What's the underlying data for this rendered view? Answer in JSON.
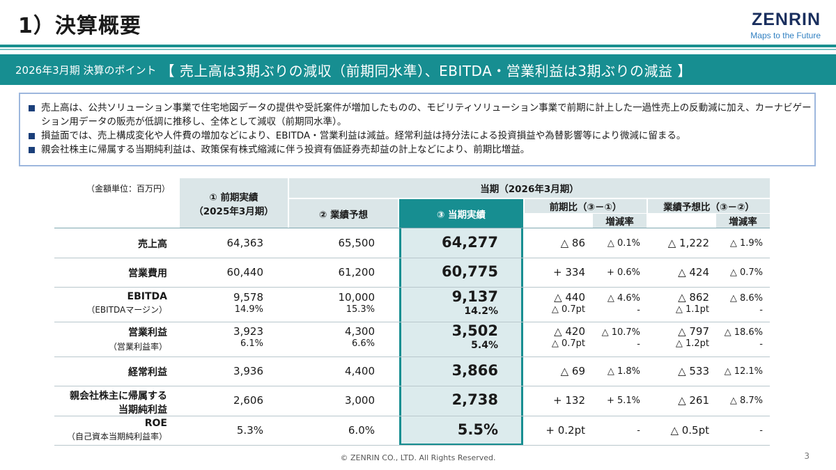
{
  "header": {
    "title": "1）決算概要",
    "logo_brand": "ZENRIN",
    "logo_tagline": "Maps to the Future"
  },
  "banner": {
    "small": "2026年3月期 決算のポイント",
    "big": "【 売上高は3期ぶりの減収（前期同水準）、EBITDA・営業利益は3期ぶりの減益 】"
  },
  "summary": [
    "売上高は、公共ソリューション事業で住宅地図データの提供や受託案件が増加したものの、モビリティソリューション事業で前期に計上した一過性売上の反動減に加え、カーナビゲーション用データの販売が低調に推移し、全体として減収（前期同水準）。",
    "損益面では、売上構成変化や人件費の増加などにより、EBITDA・営業利益は減益。経常利益は持分法による投資損益や為替影響等により微減に留まる。",
    "親会社株主に帰属する当期純利益は、政策保有株式縮減に伴う投資有価証券売却益の計上などにより、前期比増益。"
  ],
  "table": {
    "unit": "（金額単位：百万円）",
    "headers": {
      "prev": "① 前期実績",
      "prev_sub": "（2025年3月期）",
      "current_period": "当期（2026年3月期）",
      "forecast": "② 業績予想",
      "actual": "③ 当期実績",
      "yoy": "前期比（③－①）",
      "vs_forecast": "業績予想比（③－②）",
      "rate": "増減率"
    },
    "rows": [
      {
        "label": "売上高",
        "label_sub": "",
        "prev": "64,363",
        "prev_sub": "",
        "forecast": "65,500",
        "forecast_sub": "",
        "actual": "64,277",
        "actual_sub": "",
        "yoy": "△ 86",
        "yoy_sub": "",
        "yoy_rate": "△ 0.1%",
        "yoy_rate_sub": "",
        "fc": "△ 1,222",
        "fc_sub": "",
        "fc_rate": "△ 1.9%",
        "fc_rate_sub": ""
      },
      {
        "label": "営業費用",
        "label_sub": "",
        "prev": "60,440",
        "prev_sub": "",
        "forecast": "61,200",
        "forecast_sub": "",
        "actual": "60,775",
        "actual_sub": "",
        "yoy": "+ 334",
        "yoy_sub": "",
        "yoy_rate": "+ 0.6%",
        "yoy_rate_sub": "",
        "fc": "△ 424",
        "fc_sub": "",
        "fc_rate": "△ 0.7%",
        "fc_rate_sub": ""
      },
      {
        "label": "EBITDA",
        "label_sub": "（EBITDAマージン）",
        "prev": "9,578",
        "prev_sub": "14.9%",
        "forecast": "10,000",
        "forecast_sub": "15.3%",
        "actual": "9,137",
        "actual_sub": "14.2%",
        "yoy": "△ 440",
        "yoy_sub": "△ 0.7pt",
        "yoy_rate": "△ 4.6%",
        "yoy_rate_sub": "-",
        "fc": "△ 862",
        "fc_sub": "△ 1.1pt",
        "fc_rate": "△ 8.6%",
        "fc_rate_sub": "-"
      },
      {
        "label": "営業利益",
        "label_sub": "（営業利益率）",
        "prev": "3,923",
        "prev_sub": "6.1%",
        "forecast": "4,300",
        "forecast_sub": "6.6%",
        "actual": "3,502",
        "actual_sub": "5.4%",
        "yoy": "△ 420",
        "yoy_sub": "△ 0.7pt",
        "yoy_rate": "△ 10.7%",
        "yoy_rate_sub": "-",
        "fc": "△ 797",
        "fc_sub": "△ 1.2pt",
        "fc_rate": "△ 18.6%",
        "fc_rate_sub": "-"
      },
      {
        "label": "経常利益",
        "label_sub": "",
        "prev": "3,936",
        "prev_sub": "",
        "forecast": "4,400",
        "forecast_sub": "",
        "actual": "3,866",
        "actual_sub": "",
        "yoy": "△ 69",
        "yoy_sub": "",
        "yoy_rate": "△ 1.8%",
        "yoy_rate_sub": "",
        "fc": "△ 533",
        "fc_sub": "",
        "fc_rate": "△ 12.1%",
        "fc_rate_sub": ""
      },
      {
        "label": "親会社株主に帰属する",
        "label_sub": "当期純利益",
        "prev": "2,606",
        "prev_sub": "",
        "forecast": "3,000",
        "forecast_sub": "",
        "actual": "2,738",
        "actual_sub": "",
        "yoy": "+ 132",
        "yoy_sub": "",
        "yoy_rate": "+ 5.1%",
        "yoy_rate_sub": "",
        "fc": "△ 261",
        "fc_sub": "",
        "fc_rate": "△ 8.7%",
        "fc_rate_sub": ""
      },
      {
        "label": "ROE",
        "label_sub": "（自己資本当期純利益率）",
        "prev": "5.3%",
        "prev_sub": "",
        "forecast": "6.0%",
        "forecast_sub": "",
        "actual": "5.5%",
        "actual_sub": "",
        "yoy": "+ 0.2pt",
        "yoy_sub": "",
        "yoy_rate": "-",
        "yoy_rate_sub": "",
        "fc": "△ 0.5pt",
        "fc_sub": "",
        "fc_rate": "-",
        "fc_rate_sub": ""
      }
    ]
  },
  "footer": {
    "copyright": "© ZENRIN CO., LTD. All Rights Reserved.",
    "page": "3"
  }
}
